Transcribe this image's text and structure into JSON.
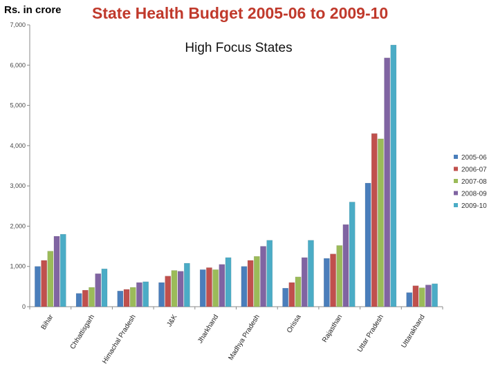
{
  "header": {
    "unit_label": "Rs. in crore",
    "title": "State Health Budget 2005-06 to 2009-10"
  },
  "chart_data": {
    "type": "bar",
    "title": "High Focus States",
    "xlabel": "",
    "ylabel": "Rs. in crore",
    "ylim": [
      0,
      7000
    ],
    "yticks": [
      "0",
      "1,000",
      "2,000",
      "3,000",
      "4,000",
      "5,000",
      "6,000",
      "7,000"
    ],
    "grid": false,
    "legend_position": "right",
    "categories": [
      "Bihar",
      "Chhattisgarh",
      "Himachal Pradesh",
      "J&K",
      "Jharkhand",
      "Madhya Pradesh",
      "Orissa",
      "Rajasthan",
      "Uttar Pradesh",
      "Uttarakhand"
    ],
    "series": [
      {
        "name": "2005-06",
        "color": "#4a7ebb",
        "values": [
          1000,
          330,
          390,
          600,
          920,
          1000,
          460,
          1200,
          3070,
          350
        ]
      },
      {
        "name": "2006-07",
        "color": "#c0504d",
        "values": [
          1150,
          410,
          430,
          760,
          970,
          1150,
          600,
          1310,
          4300,
          520
        ]
      },
      {
        "name": "2007-08",
        "color": "#9bbb59",
        "values": [
          1380,
          480,
          480,
          900,
          920,
          1250,
          740,
          1520,
          4170,
          470
        ]
      },
      {
        "name": "2008-09",
        "color": "#8064a2",
        "values": [
          1750,
          820,
          600,
          880,
          1050,
          1500,
          1220,
          2040,
          6180,
          540
        ]
      },
      {
        "name": "2009-10",
        "color": "#4bacc6",
        "values": [
          1800,
          940,
          620,
          1080,
          1220,
          1650,
          1650,
          2600,
          6500,
          570
        ]
      }
    ]
  }
}
